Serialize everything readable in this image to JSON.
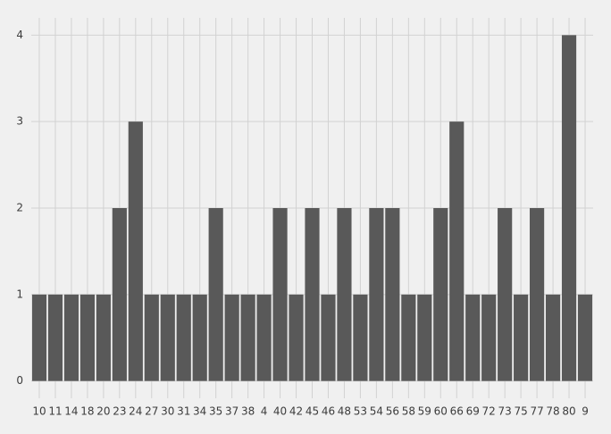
{
  "chart_data": {
    "type": "bar",
    "categories": [
      "10",
      "11",
      "14",
      "18",
      "20",
      "23",
      "24",
      "27",
      "30",
      "31",
      "34",
      "35",
      "37",
      "38",
      "4",
      "40",
      "42",
      "45",
      "46",
      "48",
      "53",
      "54",
      "56",
      "58",
      "59",
      "60",
      "66",
      "69",
      "72",
      "73",
      "75",
      "77",
      "78",
      "80",
      "9"
    ],
    "values": [
      1,
      1,
      1,
      1,
      1,
      2,
      3,
      1,
      1,
      1,
      1,
      2,
      1,
      1,
      1,
      2,
      1,
      2,
      1,
      2,
      1,
      2,
      2,
      1,
      1,
      2,
      3,
      1,
      1,
      2,
      1,
      2,
      1,
      4,
      1
    ],
    "color": "#595959",
    "ylim": [
      -0.2,
      4.2
    ],
    "yticks": [
      0,
      1,
      2,
      3,
      4
    ],
    "grid": true
  }
}
